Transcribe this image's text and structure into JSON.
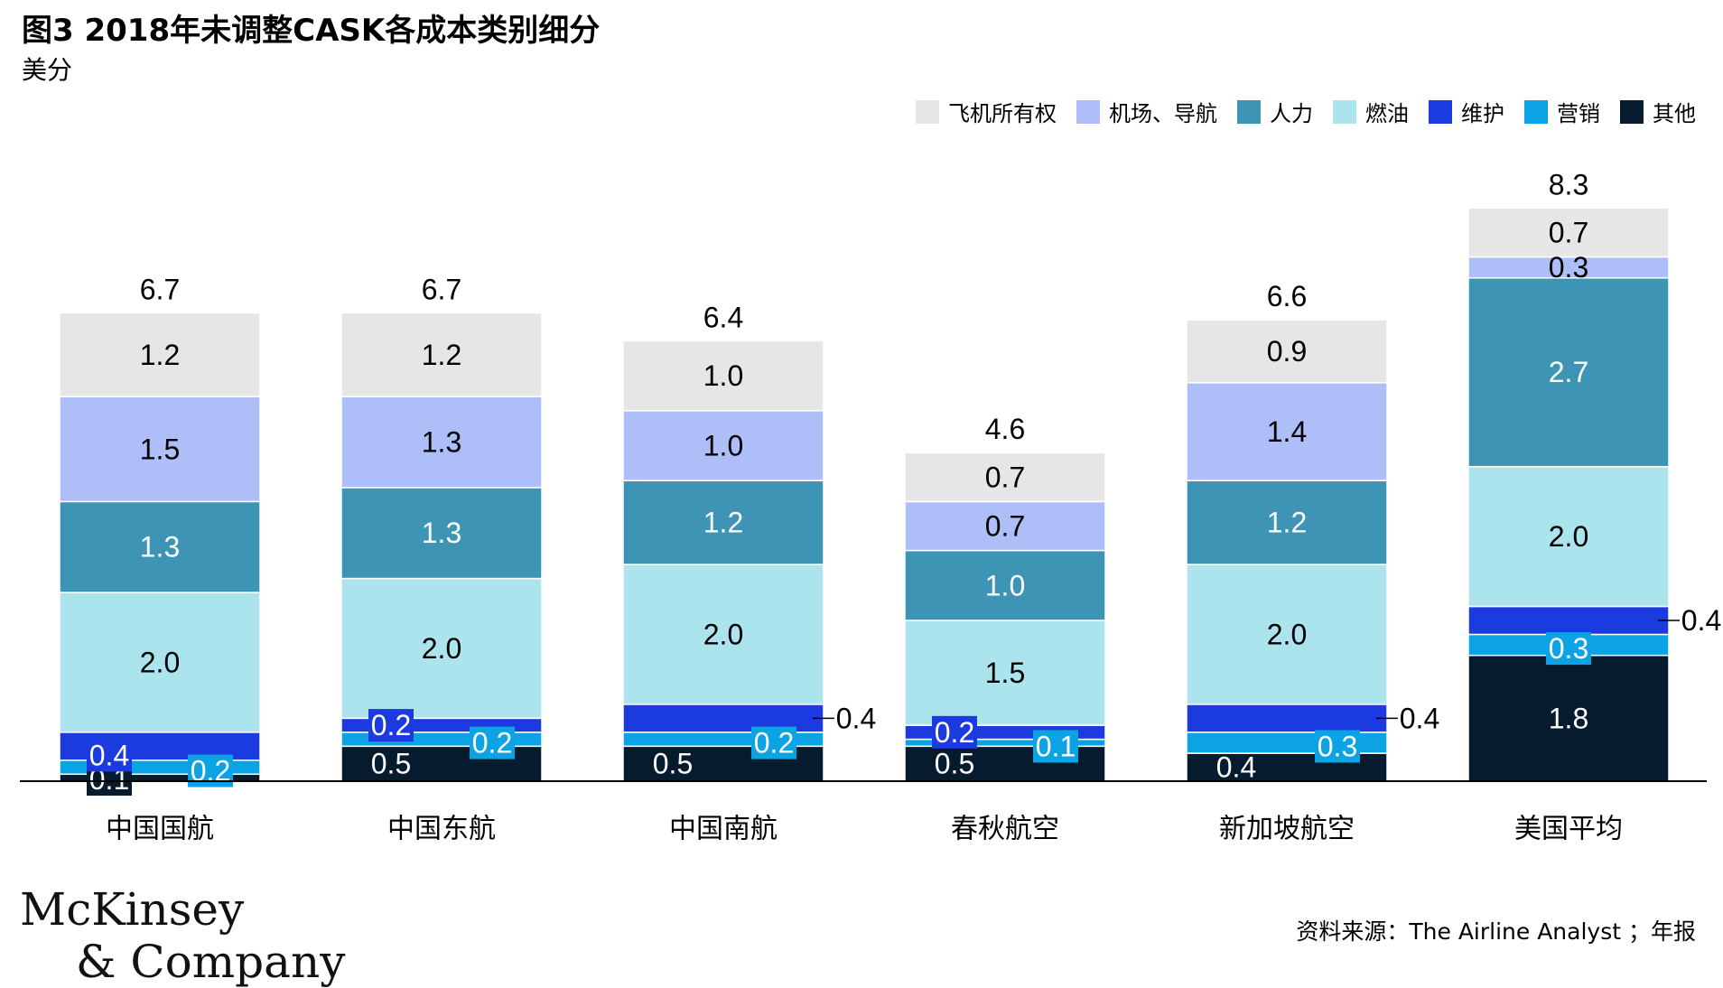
{
  "title": "图3 2018年未调整CASK各成本类别细分",
  "subtitle": "美分",
  "source": "资料来源：The Airline Analyst ；年报",
  "logo": {
    "line1": "McKinsey",
    "line2": "& Company"
  },
  "colors": {
    "ownership": "#e6e6e6",
    "airport": "#adbef9",
    "labor": "#3d94b4",
    "fuel": "#ace4ee",
    "maintenance": "#1b3ae0",
    "sales": "#0ba3e4",
    "other": "#061c2e"
  },
  "chart_data": {
    "type": "bar",
    "stacked": true,
    "categories": [
      "中国国航",
      "中国东航",
      "中国南航",
      "春秋航空",
      "新加坡航空",
      "美国平均"
    ],
    "totals": [
      "6.7",
      "6.7",
      "6.4",
      "4.6",
      "6.6",
      "8.3"
    ],
    "series": [
      {
        "name": "其他",
        "key": "other",
        "values": [
          0.1,
          0.5,
          0.5,
          0.5,
          0.4,
          1.8
        ]
      },
      {
        "name": "营销",
        "key": "sales",
        "values": [
          0.2,
          0.2,
          0.2,
          0.1,
          0.3,
          0.3
        ]
      },
      {
        "name": "维护",
        "key": "maintenance",
        "values": [
          0.4,
          0.2,
          0.4,
          0.2,
          0.4,
          0.4
        ]
      },
      {
        "name": "燃油",
        "key": "fuel",
        "values": [
          2.0,
          2.0,
          2.0,
          1.5,
          2.0,
          2.0
        ]
      },
      {
        "name": "人力",
        "key": "labor",
        "values": [
          1.3,
          1.3,
          1.2,
          1.0,
          1.2,
          2.7
        ]
      },
      {
        "name": "机场、导航",
        "key": "airport",
        "values": [
          1.5,
          1.3,
          1.0,
          0.7,
          1.4,
          0.3
        ]
      },
      {
        "name": "飞机所有权",
        "key": "ownership",
        "values": [
          1.2,
          1.2,
          1.0,
          0.7,
          0.9,
          0.7
        ]
      }
    ],
    "legend_order": [
      "ownership",
      "airport",
      "labor",
      "fuel",
      "maintenance",
      "sales",
      "other"
    ],
    "legend_position": "top-right",
    "grid": false
  }
}
